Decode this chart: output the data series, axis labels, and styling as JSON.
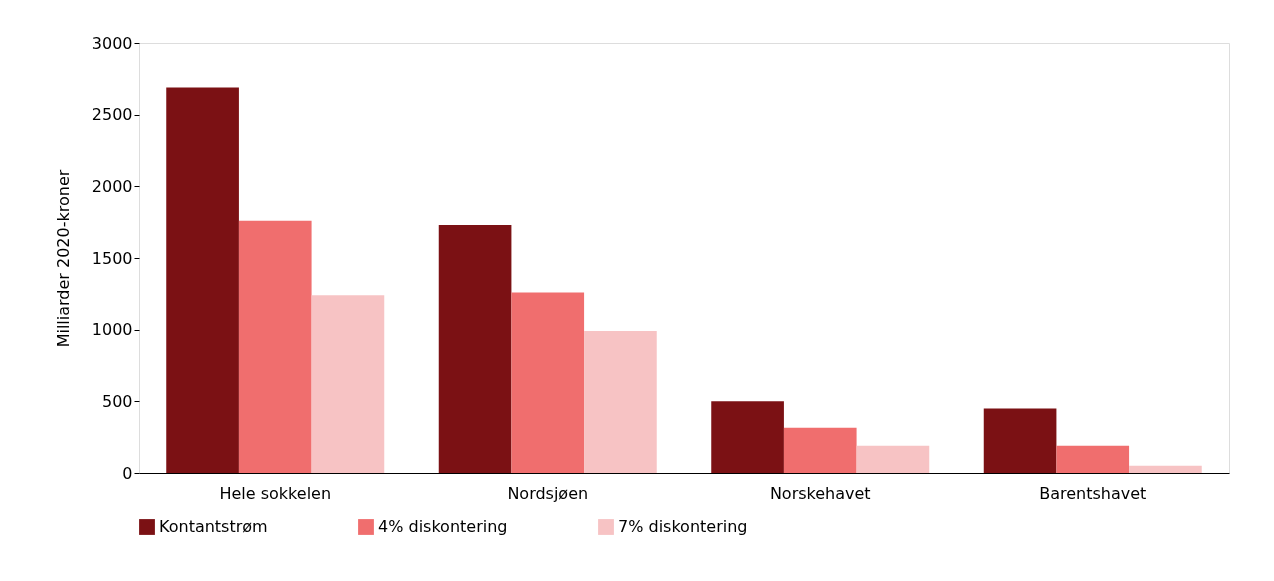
{
  "chart_data": {
    "type": "bar",
    "ylabel": "Milliarder 2020-kroner",
    "categories": [
      "Hele sokkelen",
      "Nordsjøen",
      "Norskehavet",
      "Barentshavet"
    ],
    "series": [
      {
        "name": "Kontantstrøm",
        "color": "#7b1114",
        "values": [
          2690,
          1730,
          500,
          450
        ]
      },
      {
        "name": "4% diskontering",
        "color": "#f06e6e",
        "values": [
          1760,
          1260,
          315,
          190
        ]
      },
      {
        "name": "7% diskontering",
        "color": "#f7c3c4",
        "values": [
          1240,
          990,
          190,
          50
        ]
      }
    ],
    "ylim": [
      0,
      3000
    ],
    "yticks": [
      0,
      500,
      1000,
      1500,
      2000,
      2500,
      3000
    ],
    "grid": false,
    "legend": "bottom"
  }
}
